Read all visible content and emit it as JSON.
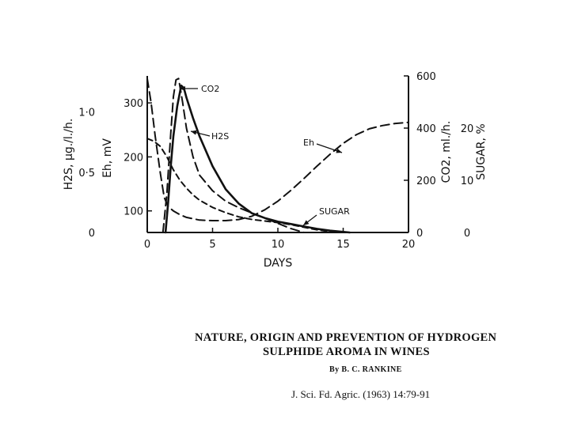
{
  "paper": {
    "title_line1": "NATURE, ORIGIN AND PREVENTION OF HYDROGEN",
    "title_line2": "SULPHIDE AROMA IN WINES",
    "author": "By B. C. RANKINE",
    "citation": "J. Sci. Fd. Agric. (1963) 14:79-91"
  },
  "chart_data": {
    "type": "line",
    "xlabel": "DAYS",
    "x_ticks": [
      "0",
      "5",
      "10",
      "15",
      "20"
    ],
    "xlim": [
      0,
      20
    ],
    "axes": {
      "h2s": {
        "label": "H2S, μg./l./h.",
        "ticks": [
          "0",
          "0·5",
          "1·0"
        ],
        "ylim": [
          0,
          1.3
        ]
      },
      "eh": {
        "label": "Eh, mV",
        "ticks": [
          "100",
          "200",
          "300"
        ],
        "ylim": [
          60,
          350
        ]
      },
      "co2": {
        "label": "CO2, ml./h.",
        "ticks": [
          "0",
          "200",
          "400",
          "600"
        ],
        "ylim": [
          0,
          600
        ]
      },
      "sugar": {
        "label": "SUGAR, %",
        "ticks": [
          "0",
          "10",
          "20"
        ],
        "ylim": [
          0,
          30
        ]
      }
    },
    "series": [
      {
        "name": "CO2",
        "axis": "co2",
        "style": "long-dash",
        "x": [
          1.2,
          1.5,
          1.8,
          2.0,
          2.2,
          2.4,
          2.7,
          3.0,
          3.5,
          4.0,
          5.0,
          6.0,
          7.0,
          8.0,
          9.0,
          10.0,
          11.0,
          12.0
        ],
        "y": [
          0,
          150,
          380,
          520,
          585,
          590,
          500,
          400,
          290,
          220,
          160,
          120,
          95,
          75,
          55,
          35,
          15,
          0
        ]
      },
      {
        "name": "H2S",
        "axis": "h2s",
        "style": "solid",
        "x": [
          1.4,
          1.6,
          1.8,
          2.0,
          2.3,
          2.6,
          2.8,
          3.0,
          3.5,
          4.0,
          5.0,
          6.0,
          7.0,
          8.0,
          9.0,
          10.0,
          11.0,
          12.0,
          13.0,
          14.0,
          15.5
        ],
        "y": [
          0,
          0.25,
          0.55,
          0.8,
          1.05,
          1.22,
          1.2,
          1.12,
          0.95,
          0.8,
          0.55,
          0.36,
          0.24,
          0.16,
          0.12,
          0.09,
          0.07,
          0.05,
          0.03,
          0.015,
          0
        ]
      },
      {
        "name": "Eh",
        "axis": "eh",
        "style": "long-dash",
        "x": [
          0,
          0.3,
          0.6,
          1.0,
          1.3,
          1.6,
          2.0,
          2.5,
          3.0,
          4.0,
          5.0,
          6.0,
          7.0,
          8.0,
          9.0,
          10.0,
          11.0,
          12.0,
          13.0,
          14.0,
          15.0,
          16.0,
          17.0,
          18.0,
          19.0,
          20.0
        ],
        "y": [
          345,
          300,
          240,
          170,
          125,
          108,
          100,
          93,
          88,
          83,
          82,
          82,
          84,
          90,
          102,
          118,
          138,
          160,
          183,
          205,
          225,
          241,
          252,
          258,
          262,
          264
        ]
      },
      {
        "name": "SUGAR",
        "axis": "sugar",
        "style": "short-dash",
        "x": [
          0,
          0.5,
          1.0,
          1.5,
          2.0,
          2.5,
          3.0,
          3.5,
          4.0,
          5.0,
          6.0,
          7.0,
          8.0,
          9.0,
          10.0,
          11.0,
          12.0,
          13.0,
          14.0,
          14.8
        ],
        "y": [
          18,
          17.5,
          16.5,
          14.5,
          12,
          10,
          8.5,
          7.2,
          6.2,
          4.8,
          3.8,
          3.0,
          2.5,
          2.2,
          1.9,
          1.5,
          1.0,
          0.5,
          0.15,
          0
        ]
      }
    ],
    "annotations": [
      {
        "text": "CO2",
        "series": "CO2"
      },
      {
        "text": "H2S",
        "series": "H2S"
      },
      {
        "text": "Eh",
        "series": "Eh"
      },
      {
        "text": "SUGAR",
        "series": "SUGAR"
      }
    ]
  }
}
